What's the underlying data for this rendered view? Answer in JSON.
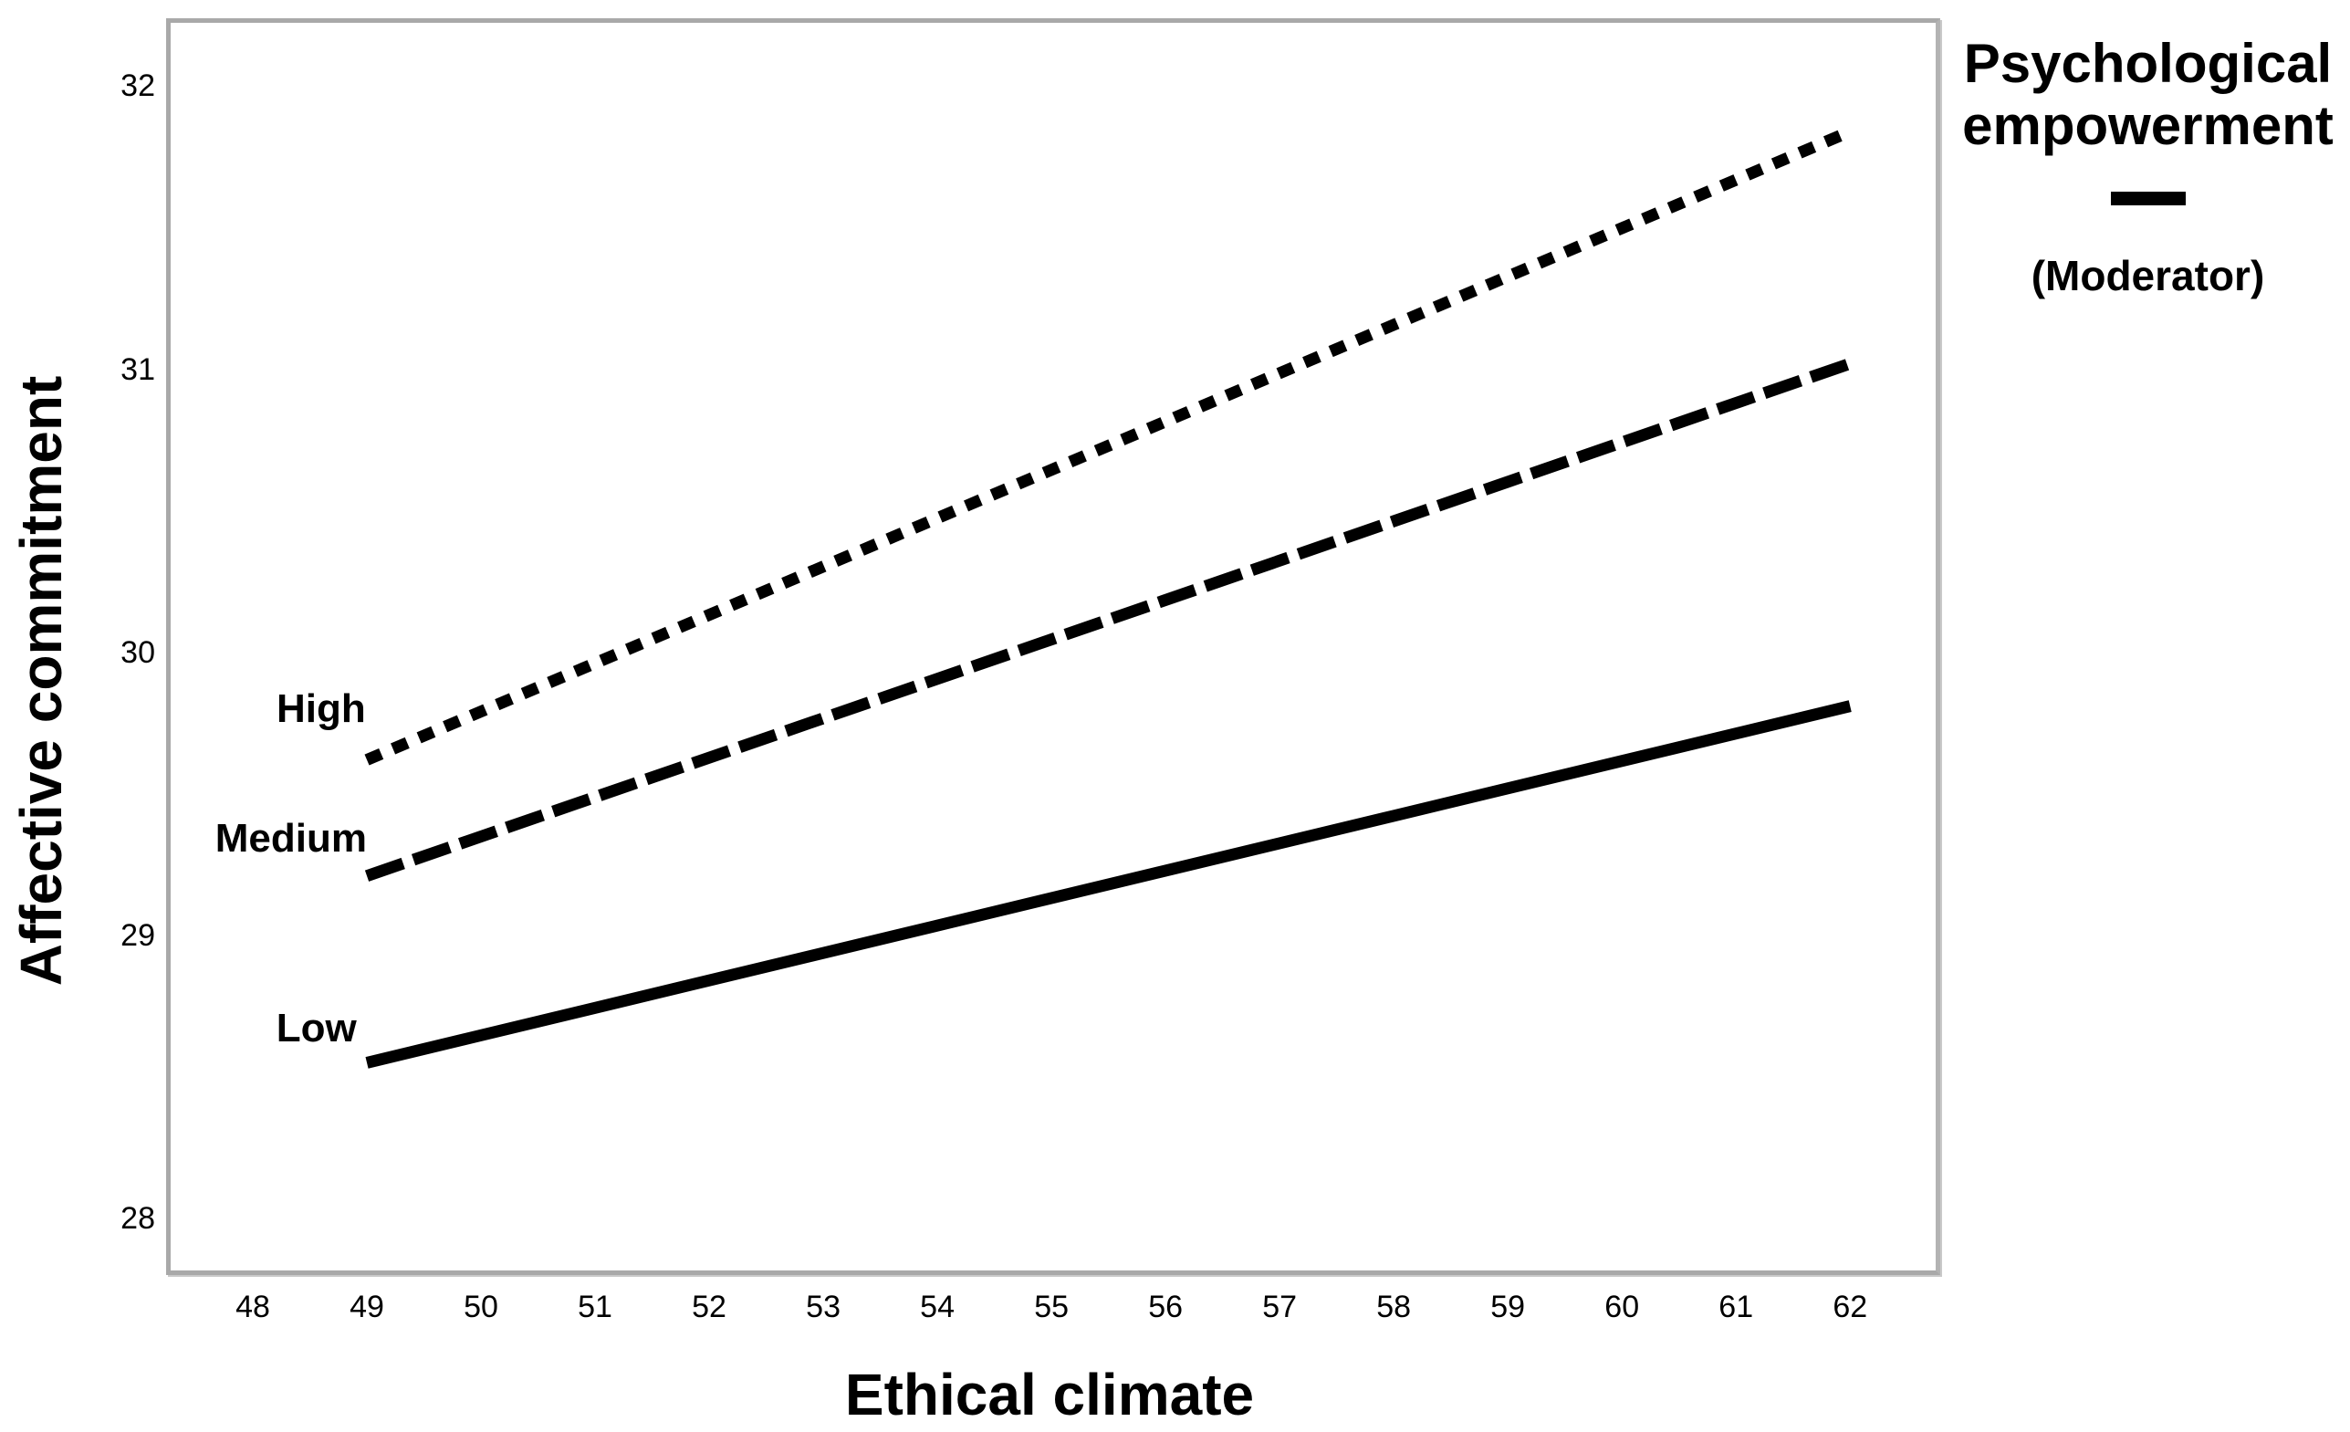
{
  "figure": {
    "background": "#ffffff",
    "frame_color": "#a9a9a9",
    "line_color": "#000000",
    "text_color": "#000000"
  },
  "chart_data": {
    "type": "line",
    "title": "",
    "xlabel": "Ethical climate",
    "ylabel": "Affective commitment",
    "xlim": [
      47.24,
      62.79
    ],
    "ylim": [
      27.8,
      32.24
    ],
    "xticks": [
      48,
      49,
      50,
      51,
      52,
      53,
      54,
      55,
      56,
      57,
      58,
      59,
      60,
      61,
      62
    ],
    "yticks": [
      32,
      31,
      30,
      29,
      28
    ],
    "grid": false,
    "legend": {
      "title": "Psychological empowerment",
      "subtitle": "(Moderator)",
      "position": "top-right",
      "sample_line_style": "solid"
    },
    "series": [
      {
        "name": "High",
        "label": "High",
        "line_style": "dotted",
        "x": [
          49,
          62
        ],
        "y": [
          29.62,
          31.84
        ],
        "label_x": 48.99,
        "label_y": 29.8
      },
      {
        "name": "Medium",
        "label": "Medium",
        "line_style": "dashed",
        "x": [
          49,
          62
        ],
        "y": [
          29.21,
          31.02
        ],
        "label_x": 49.0,
        "label_y": 29.34
      },
      {
        "name": "Low",
        "label": "Low",
        "line_style": "solid",
        "x": [
          49,
          62
        ],
        "y": [
          28.55,
          29.81
        ],
        "label_x": 48.91,
        "label_y": 28.67
      }
    ]
  }
}
